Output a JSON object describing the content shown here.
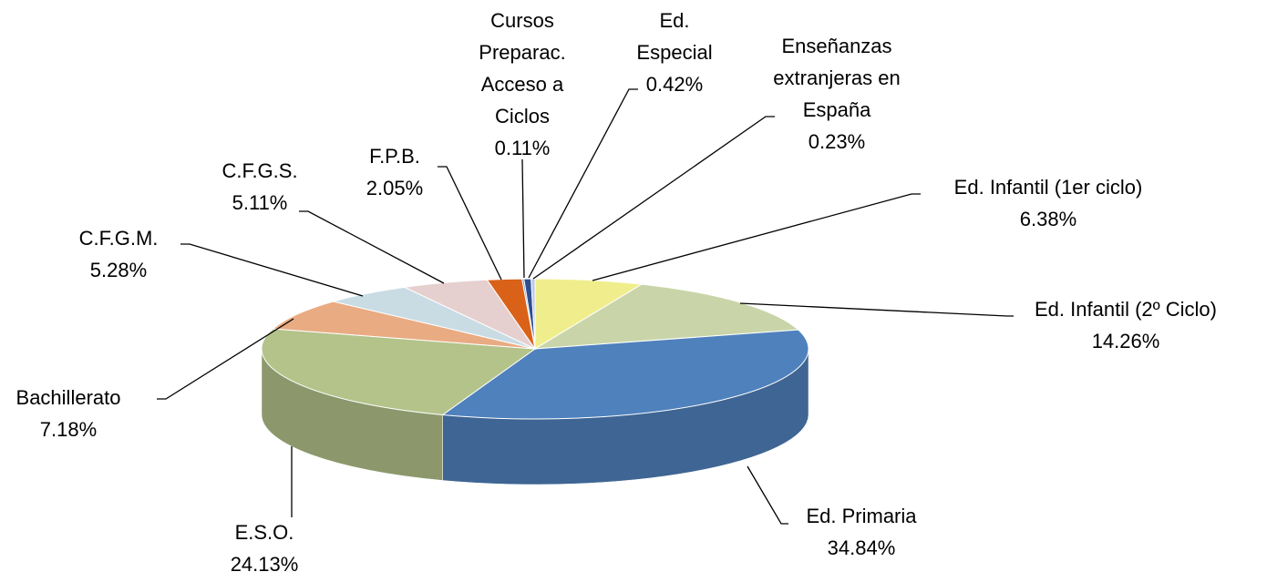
{
  "chart_data": {
    "type": "pie3d",
    "categories": [
      "Ed. Infantil (1er ciclo)",
      "Ed. Infantil (2º Ciclo)",
      "Ed. Primaria",
      "E.S.O.",
      "Bachillerato",
      "C.F.G.M.",
      "C.F.G.S.",
      "F.P.B.",
      "Cursos Preparac. Acceso a Ciclos",
      "Ed. Especial",
      "Enseñanzas extranjeras en España"
    ],
    "values": [
      6.38,
      14.26,
      34.84,
      24.13,
      7.18,
      5.28,
      5.11,
      2.05,
      0.11,
      0.42,
      0.23
    ],
    "value_labels": [
      "6.38%",
      "14.26%",
      "34.84%",
      "24.13%",
      "7.18%",
      "5.28%",
      "5.11%",
      "2.05%",
      "0.11%",
      "0.42%",
      "0.23%"
    ],
    "colors": [
      "#f0ee8c",
      "#c9d5a8",
      "#4f81bd",
      "#b3c38a",
      "#e9ab82",
      "#c9dce4",
      "#e6cfcf",
      "#d96218",
      "#6f8fc8",
      "#2f4f8f",
      "#b9c9e6"
    ]
  }
}
